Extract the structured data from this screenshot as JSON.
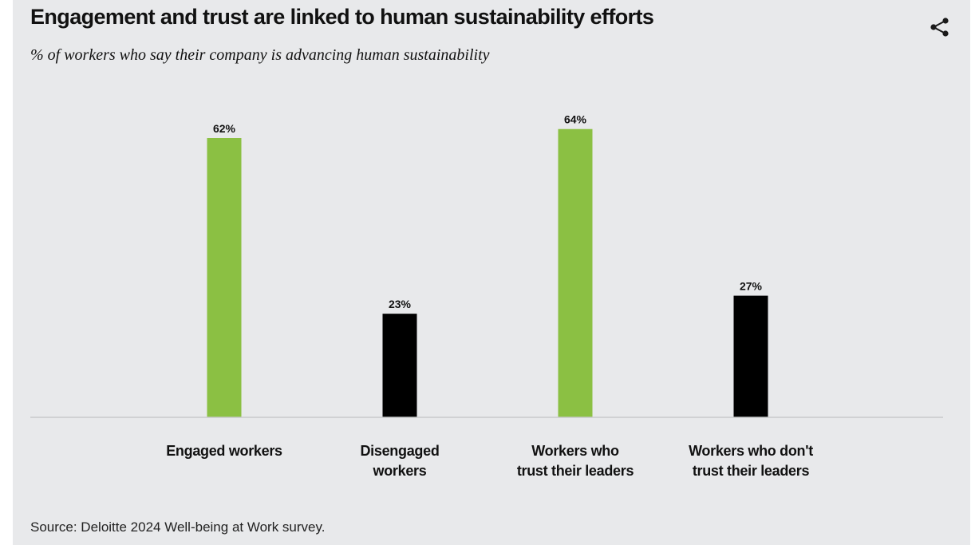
{
  "header": {
    "title": "Engagement and trust are linked to human sustainability efforts",
    "subtitle": "% of workers who say their company is advancing human sustainability",
    "share_icon": "share-icon"
  },
  "footer": {
    "source": "Source: Deloitte 2024 Well-being at Work survey."
  },
  "chart_data": {
    "type": "bar",
    "title": "Engagement and trust are linked to human sustainability efforts",
    "subtitle": "% of workers who say their company is advancing human sustainability",
    "xlabel": "",
    "ylabel": "",
    "ylim": [
      0,
      100
    ],
    "grid": false,
    "categories": [
      [
        "Engaged workers"
      ],
      [
        "Disengaged",
        "workers"
      ],
      [
        "Workers who",
        "trust their leaders"
      ],
      [
        "Workers  who don't",
        "trust their leaders"
      ]
    ],
    "values": [
      62,
      23,
      64,
      27
    ],
    "value_labels": [
      "62%",
      "23%",
      "64%",
      "27%"
    ],
    "colors": [
      "#8bc043",
      "#000000",
      "#8bc043",
      "#000000"
    ],
    "baseline_color": "#c8c9cb"
  }
}
